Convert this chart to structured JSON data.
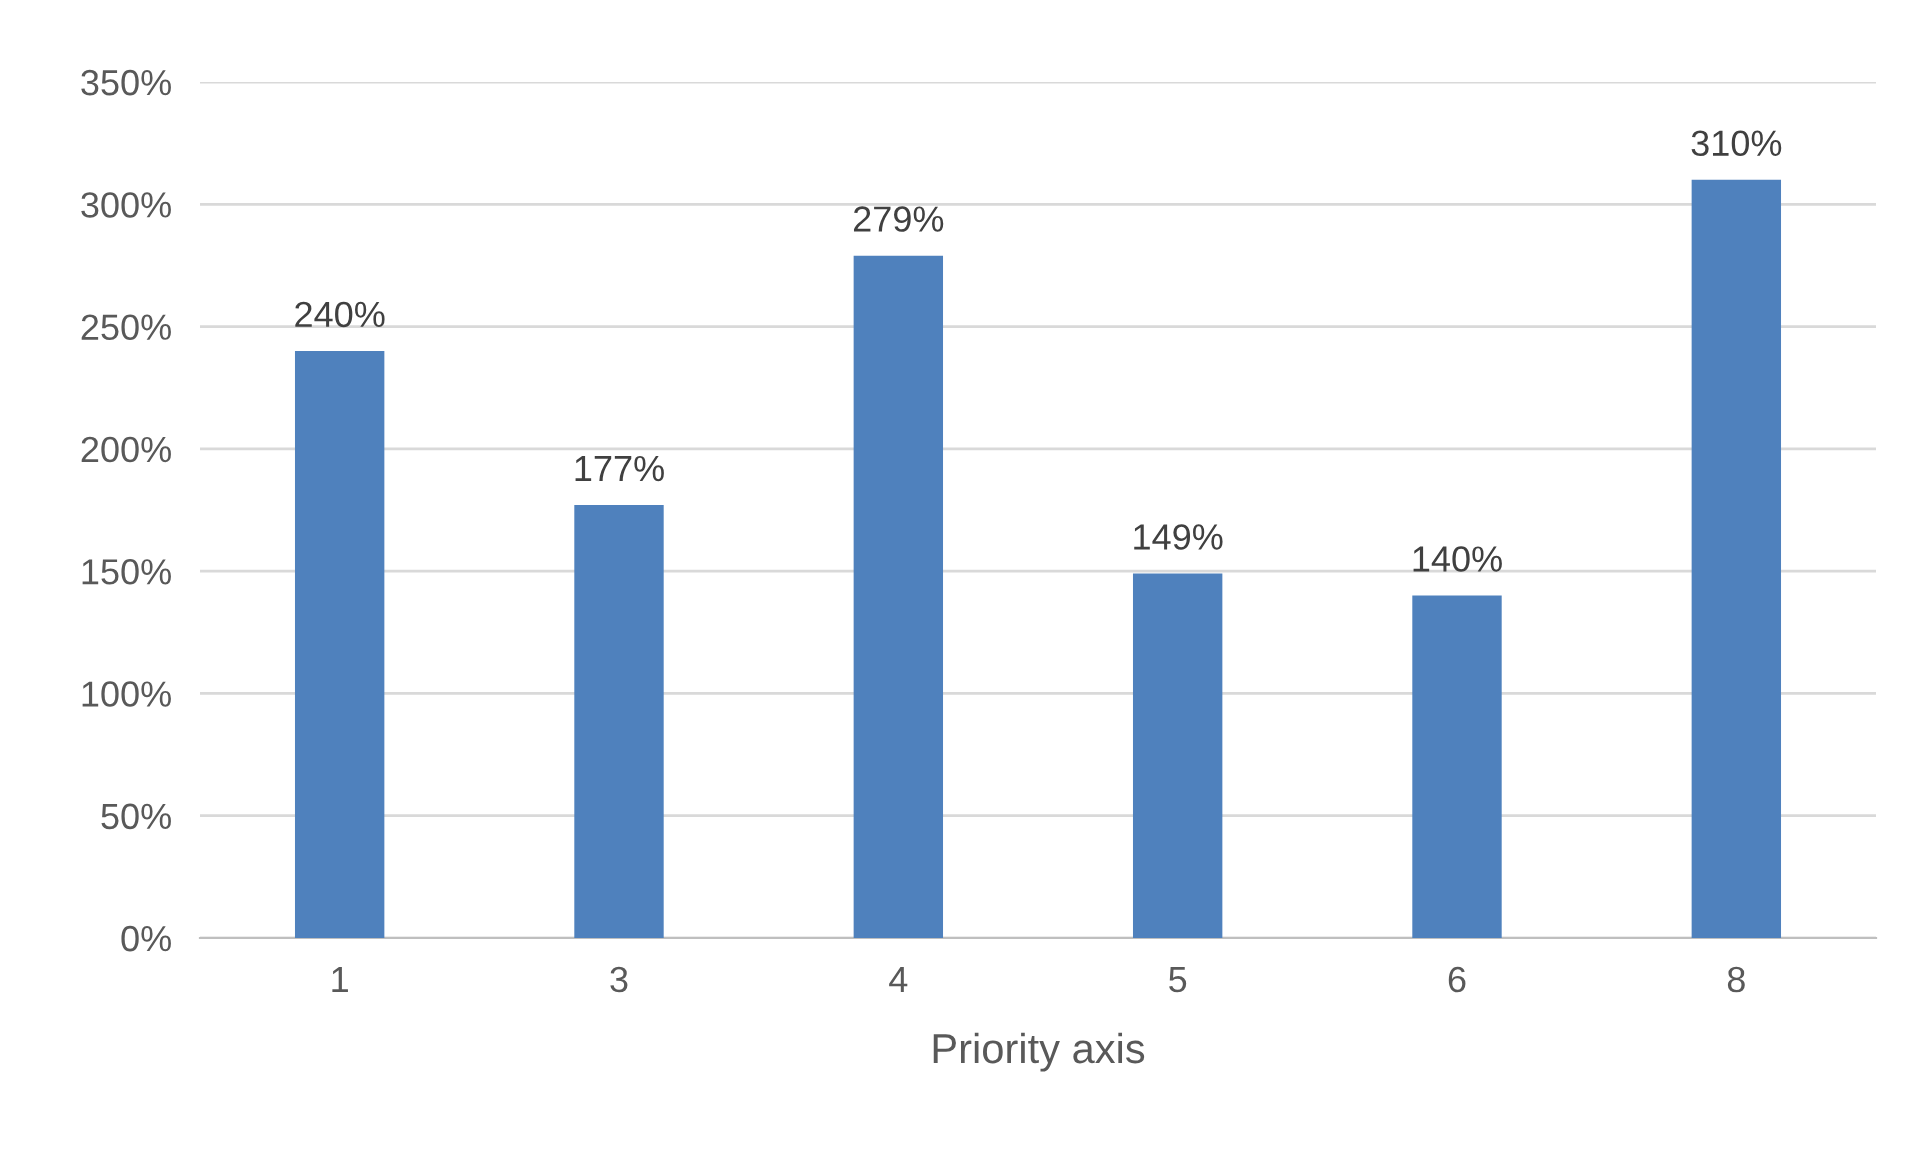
{
  "chart_data": {
    "type": "bar",
    "xlabel": "Priority axis",
    "categories": [
      "1",
      "3",
      "4",
      "5",
      "6",
      "8"
    ],
    "values": [
      240,
      177,
      279,
      149,
      140,
      310
    ],
    "value_labels": [
      "240%",
      "177%",
      "279%",
      "149%",
      "140%",
      "310%"
    ],
    "color": "#4f81bd",
    "ylim": [
      0,
      350
    ],
    "yticks": [
      {
        "value": 0,
        "label": "0%"
      },
      {
        "value": 50,
        "label": "50%"
      },
      {
        "value": 100,
        "label": "100%"
      },
      {
        "value": 150,
        "label": "150%"
      },
      {
        "value": 200,
        "label": "200%"
      },
      {
        "value": 250,
        "label": "250%"
      },
      {
        "value": 300,
        "label": "300%"
      },
      {
        "value": 350,
        "label": "350%"
      }
    ],
    "grid": "y",
    "legend": false
  }
}
